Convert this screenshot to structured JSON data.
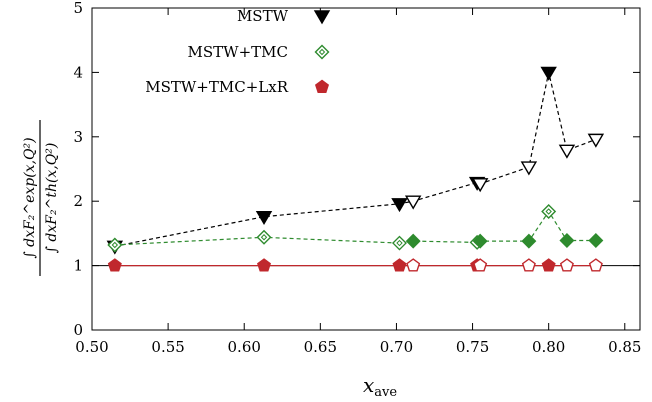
{
  "chart_data": {
    "type": "scatter",
    "xlabel_main": "x",
    "xlabel_sub": "ave",
    "ylabel_num": "∫ dxF₂^exp(x,Q²)",
    "ylabel_den": "∫ dxF₂^th(x,Q²)",
    "xlim": [
      0.5,
      0.86
    ],
    "ylim": [
      0,
      5
    ],
    "xticks": [
      0.5,
      0.55,
      0.6,
      0.65,
      0.7,
      0.75,
      0.8,
      0.85
    ],
    "xtick_labels": [
      "0.50",
      "0.55",
      "0.60",
      "0.65",
      "0.70",
      "0.75",
      "0.80",
      "0.85"
    ],
    "yticks": [
      0,
      1,
      2,
      3,
      4,
      5
    ],
    "ytick_labels": [
      "0",
      "1",
      "2",
      "3",
      "4",
      "5"
    ],
    "reference_line_y": 1,
    "legend_position": "top-left",
    "series": [
      {
        "name": "MSTW",
        "color": "#000000",
        "line_color": "#000000",
        "marker": "triangle-down",
        "points": [
          {
            "x": 0.515,
            "y": 1.3,
            "filled": true
          },
          {
            "x": 0.613,
            "y": 1.76,
            "filled": true
          },
          {
            "x": 0.702,
            "y": 1.96,
            "filled": true
          },
          {
            "x": 0.711,
            "y": 2.0,
            "filled": false
          },
          {
            "x": 0.753,
            "y": 2.29,
            "filled": true
          },
          {
            "x": 0.755,
            "y": 2.27,
            "filled": false
          },
          {
            "x": 0.787,
            "y": 2.53,
            "filled": false
          },
          {
            "x": 0.8,
            "y": 4.0,
            "filled": true
          },
          {
            "x": 0.812,
            "y": 2.79,
            "filled": false
          },
          {
            "x": 0.831,
            "y": 2.96,
            "filled": false
          }
        ]
      },
      {
        "name": "MSTW+TMC",
        "color": "#2e8b2e",
        "line_color": "#2e8b2e",
        "marker": "diamond",
        "points": [
          {
            "x": 0.515,
            "y": 1.32,
            "filled": false
          },
          {
            "x": 0.613,
            "y": 1.44,
            "filled": false
          },
          {
            "x": 0.702,
            "y": 1.35,
            "filled": false
          },
          {
            "x": 0.711,
            "y": 1.38,
            "filled": true
          },
          {
            "x": 0.753,
            "y": 1.36,
            "filled": false
          },
          {
            "x": 0.755,
            "y": 1.38,
            "filled": true
          },
          {
            "x": 0.787,
            "y": 1.38,
            "filled": true
          },
          {
            "x": 0.8,
            "y": 1.84,
            "filled": false
          },
          {
            "x": 0.812,
            "y": 1.39,
            "filled": true
          },
          {
            "x": 0.831,
            "y": 1.39,
            "filled": true
          }
        ]
      },
      {
        "name": "MSTW+TMC+LxR",
        "color": "#c0282d",
        "line_color": "#c0282d",
        "marker": "pentagon",
        "points": [
          {
            "x": 0.515,
            "y": 1.0,
            "filled": true
          },
          {
            "x": 0.613,
            "y": 1.0,
            "filled": true
          },
          {
            "x": 0.702,
            "y": 1.0,
            "filled": true
          },
          {
            "x": 0.711,
            "y": 1.0,
            "filled": false
          },
          {
            "x": 0.753,
            "y": 1.0,
            "filled": true
          },
          {
            "x": 0.755,
            "y": 1.0,
            "filled": false
          },
          {
            "x": 0.787,
            "y": 1.0,
            "filled": false
          },
          {
            "x": 0.8,
            "y": 1.0,
            "filled": true
          },
          {
            "x": 0.812,
            "y": 1.0,
            "filled": false
          },
          {
            "x": 0.831,
            "y": 1.0,
            "filled": false
          }
        ]
      }
    ]
  }
}
